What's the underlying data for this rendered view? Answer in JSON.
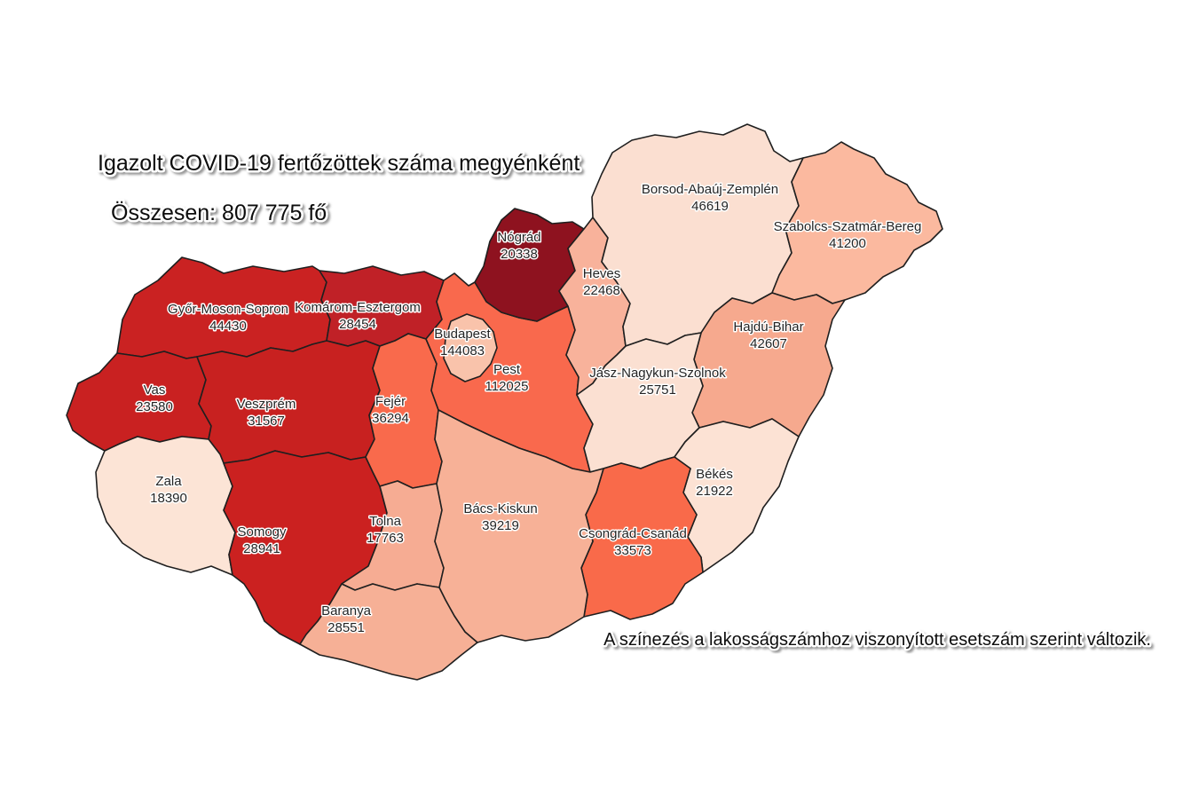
{
  "title": "Igazolt COVID-19 fertőzöttek száma megyénként",
  "subtitle": "Összesen: 807 775 fő",
  "footnote": "A színezés a lakosságszámhoz viszonyított esetszám szerint változik.",
  "colors": {
    "background": "#ffffff",
    "border": "#1f1f1f",
    "label_text": "#242424",
    "label_halo": "#ffffff",
    "scale_lowest": "#fce4d6",
    "scale_highest": "#8e121f"
  },
  "chart_data": {
    "type": "choropleth",
    "region": "Hungary (megyék / counties)",
    "metric": "Igazolt COVID-19 fertőzöttek száma",
    "total": 807775,
    "legend_note": "A színezés a lakosságszámhoz viszonyított esetszám szerint változik.",
    "counties": [
      {
        "name": "Győr-Moson-Sopron",
        "value": 44430,
        "color": "#ca2222",
        "label": [
          257,
          353
        ]
      },
      {
        "name": "Komárom-Esztergom",
        "value": 28454,
        "color": "#c02127",
        "label": [
          403,
          351
        ]
      },
      {
        "name": "Vas",
        "value": 23580,
        "color": "#c92121",
        "label": [
          174,
          444
        ]
      },
      {
        "name": "Veszprém",
        "value": 31567,
        "color": "#c82120",
        "label": [
          300,
          460
        ]
      },
      {
        "name": "Zala",
        "value": 18390,
        "color": "#fce4d6",
        "label": [
          190,
          547
        ]
      },
      {
        "name": "Somogy",
        "value": 28941,
        "color": "#cb2120",
        "label": [
          295,
          604
        ]
      },
      {
        "name": "Fejér",
        "value": 36294,
        "color": "#f96a4c",
        "label": [
          440,
          457
        ]
      },
      {
        "name": "Tolna",
        "value": 17763,
        "color": "#f6ac93",
        "label": [
          434,
          592
        ]
      },
      {
        "name": "Baranya",
        "value": 28551,
        "color": "#f6b096",
        "label": [
          390,
          693
        ]
      },
      {
        "name": "Pest",
        "value": 112025,
        "color": "#f9694d",
        "label": [
          571,
          421
        ]
      },
      {
        "name": "Budapest",
        "value": 144083,
        "color": "#f9c3ab",
        "label": [
          521,
          381
        ]
      },
      {
        "name": "Nógrád",
        "value": 20338,
        "color": "#8e121f",
        "label": [
          585,
          272
        ]
      },
      {
        "name": "Heves",
        "value": 22468,
        "color": "#f8b29b",
        "label": [
          678,
          313
        ]
      },
      {
        "name": "Borsod-Abaúj-Zemplén",
        "value": 46619,
        "color": "#fbdfd1",
        "label": [
          800,
          218
        ]
      },
      {
        "name": "Szabolcs-Szatmár-Bereg",
        "value": 41200,
        "color": "#fbb99f",
        "label": [
          955,
          260
        ]
      },
      {
        "name": "Hajdú-Bihar",
        "value": 42607,
        "color": "#f6a98e",
        "label": [
          866,
          373
        ]
      },
      {
        "name": "Jász-Nagykun-Szolnok",
        "value": 25751,
        "color": "#fbe0d2",
        "label": [
          741,
          425
        ]
      },
      {
        "name": "Békés",
        "value": 21922,
        "color": "#fce2d4",
        "label": [
          805,
          539
        ]
      },
      {
        "name": "Csongrád-Csanád",
        "value": 33573,
        "color": "#f96a4a",
        "label": [
          713,
          606
        ]
      },
      {
        "name": "Bács-Kiskun",
        "value": 39219,
        "color": "#f7b197",
        "label": [
          564,
          578
        ]
      }
    ]
  }
}
